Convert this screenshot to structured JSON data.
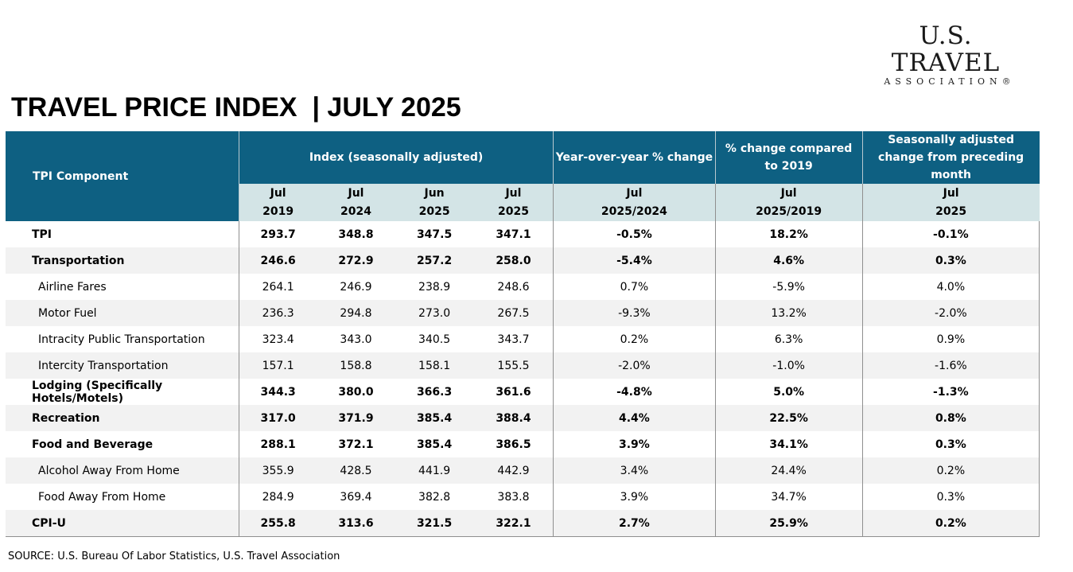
{
  "logo": {
    "main": "U.S. TRAVEL",
    "sub": "ASSOCIATION®"
  },
  "title": "TRAVEL PRICE INDEX  | JULY 2025",
  "table": {
    "component_header": "TPI Component",
    "group_headers": {
      "index": "Index  (seasonally adjusted)",
      "yoy": "Year-over-year % change",
      "vs2019": "% change compared to 2019",
      "mom": "Seasonally adjusted change from preceding month"
    },
    "sub_headers": [
      {
        "line1": "Jul",
        "line2": "2019"
      },
      {
        "line1": "Jul",
        "line2": "2024"
      },
      {
        "line1": "Jun",
        "line2": "2025"
      },
      {
        "line1": "Jul",
        "line2": "2025"
      },
      {
        "line1": "Jul",
        "line2": "2025/2024"
      },
      {
        "line1": "Jul",
        "line2": "2025/2019"
      },
      {
        "line1": "Jul",
        "line2": "2025"
      }
    ],
    "rows": [
      {
        "name": "TPI",
        "values": [
          "293.7",
          "348.8",
          "347.5",
          "347.1",
          "-0.5%",
          "18.2%",
          "-0.1%"
        ]
      },
      {
        "name": "Transportation",
        "values": [
          "246.6",
          "272.9",
          "257.2",
          "258.0",
          "-5.4%",
          "4.6%",
          "0.3%"
        ]
      },
      {
        "name": "Airline Fares",
        "values": [
          "264.1",
          "246.9",
          "238.9",
          "248.6",
          "0.7%",
          "-5.9%",
          "4.0%"
        ]
      },
      {
        "name": "Motor Fuel",
        "values": [
          "236.3",
          "294.8",
          "273.0",
          "267.5",
          "-9.3%",
          "13.2%",
          "-2.0%"
        ]
      },
      {
        "name": "Intracity Public Transportation",
        "values": [
          "323.4",
          "343.0",
          "340.5",
          "343.7",
          "0.2%",
          "6.3%",
          "0.9%"
        ]
      },
      {
        "name": "Intercity Transportation",
        "values": [
          "157.1",
          "158.8",
          "158.1",
          "155.5",
          "-2.0%",
          "-1.0%",
          "-1.6%"
        ]
      },
      {
        "name": "Lodging (Specifically Hotels/Motels)",
        "values": [
          "344.3",
          "380.0",
          "366.3",
          "361.6",
          "-4.8%",
          "5.0%",
          "-1.3%"
        ]
      },
      {
        "name": "Recreation",
        "values": [
          "317.0",
          "371.9",
          "385.4",
          "388.4",
          "4.4%",
          "22.5%",
          "0.8%"
        ]
      },
      {
        "name": "Food and Beverage",
        "values": [
          "288.1",
          "372.1",
          "385.4",
          "386.5",
          "3.9%",
          "34.1%",
          "0.3%"
        ]
      },
      {
        "name": "Alcohol Away From Home",
        "values": [
          "355.9",
          "428.5",
          "441.9",
          "442.9",
          "3.4%",
          "24.4%",
          "0.2%"
        ]
      },
      {
        "name": "Food Away From Home",
        "values": [
          "284.9",
          "369.4",
          "382.8",
          "383.8",
          "3.9%",
          "34.7%",
          "0.3%"
        ]
      },
      {
        "name": "CPI-U",
        "values": [
          "255.8",
          "313.6",
          "321.5",
          "322.1",
          "2.7%",
          "25.9%",
          "0.2%"
        ]
      }
    ]
  },
  "source": "SOURCE: U.S. Bureau Of Labor Statistics, U.S. Travel Association"
}
